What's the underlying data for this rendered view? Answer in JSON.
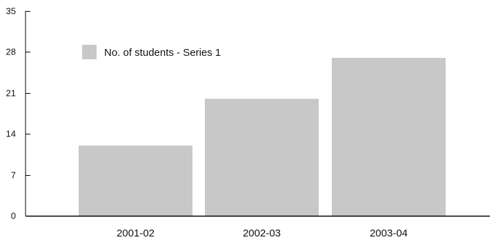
{
  "chart_data": {
    "type": "bar",
    "categories": [
      "2001-02",
      "2002-03",
      "2003-04"
    ],
    "series": [
      {
        "name": "No. of students - Series 1",
        "values": [
          12,
          20,
          27
        ],
        "color": "#c8c8c8"
      }
    ],
    "ylim": [
      0,
      35
    ],
    "yticks": [
      0,
      7,
      14,
      21,
      28,
      35
    ],
    "title": "",
    "xlabel": "",
    "ylabel": "",
    "grid": false,
    "legend_position": "top-left"
  }
}
